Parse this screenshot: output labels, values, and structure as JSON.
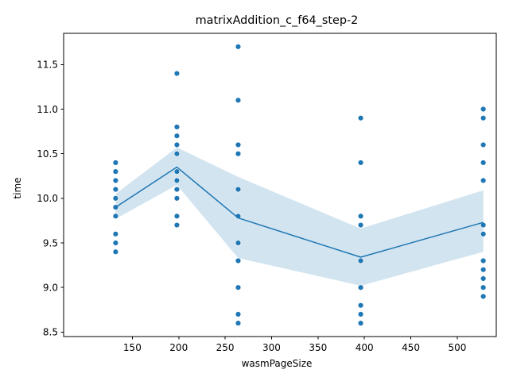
{
  "chart_data": {
    "type": "scatter",
    "title": "matrixAddition_c_f64_step-2",
    "xlabel": "wasmPageSize",
    "ylabel": "time",
    "xlim": [
      76,
      542
    ],
    "ylim": [
      8.45,
      11.85
    ],
    "xticks": [
      150,
      200,
      250,
      300,
      350,
      400,
      450,
      500
    ],
    "xtick_labels": [
      "150",
      "200",
      "250",
      "300",
      "350",
      "400",
      "450",
      "500"
    ],
    "yticks": [
      8.5,
      9.0,
      9.5,
      10.0,
      10.5,
      11.0,
      11.5
    ],
    "ytick_labels": [
      "8.5",
      "9.0",
      "9.5",
      "10.0",
      "10.5",
      "11.0",
      "11.5"
    ],
    "grid": false,
    "colors": {
      "points": "#1f77b4",
      "line": "#1f77b4",
      "band": "#1f77b4"
    },
    "points": [
      {
        "x": 132,
        "y": 10.4
      },
      {
        "x": 132,
        "y": 10.3
      },
      {
        "x": 132,
        "y": 10.2
      },
      {
        "x": 132,
        "y": 10.1
      },
      {
        "x": 132,
        "y": 10.0
      },
      {
        "x": 132,
        "y": 9.9
      },
      {
        "x": 132,
        "y": 9.8
      },
      {
        "x": 132,
        "y": 9.6
      },
      {
        "x": 132,
        "y": 9.5
      },
      {
        "x": 132,
        "y": 9.4
      },
      {
        "x": 198,
        "y": 11.4
      },
      {
        "x": 198,
        "y": 10.8
      },
      {
        "x": 198,
        "y": 10.7
      },
      {
        "x": 198,
        "y": 10.6
      },
      {
        "x": 198,
        "y": 10.5
      },
      {
        "x": 198,
        "y": 10.3
      },
      {
        "x": 198,
        "y": 10.2
      },
      {
        "x": 198,
        "y": 10.1
      },
      {
        "x": 198,
        "y": 10.0
      },
      {
        "x": 198,
        "y": 9.8
      },
      {
        "x": 198,
        "y": 9.7
      },
      {
        "x": 264,
        "y": 11.7
      },
      {
        "x": 264,
        "y": 11.1
      },
      {
        "x": 264,
        "y": 10.6
      },
      {
        "x": 264,
        "y": 10.5
      },
      {
        "x": 264,
        "y": 10.1
      },
      {
        "x": 264,
        "y": 9.8
      },
      {
        "x": 264,
        "y": 9.5
      },
      {
        "x": 264,
        "y": 9.3
      },
      {
        "x": 264,
        "y": 9.0
      },
      {
        "x": 264,
        "y": 8.7
      },
      {
        "x": 264,
        "y": 8.6
      },
      {
        "x": 396,
        "y": 10.9
      },
      {
        "x": 396,
        "y": 10.4
      },
      {
        "x": 396,
        "y": 9.8
      },
      {
        "x": 396,
        "y": 9.7
      },
      {
        "x": 396,
        "y": 9.3
      },
      {
        "x": 396,
        "y": 9.0
      },
      {
        "x": 396,
        "y": 8.8
      },
      {
        "x": 396,
        "y": 8.7
      },
      {
        "x": 396,
        "y": 8.6
      },
      {
        "x": 528,
        "y": 11.0
      },
      {
        "x": 528,
        "y": 10.9
      },
      {
        "x": 528,
        "y": 10.6
      },
      {
        "x": 528,
        "y": 10.4
      },
      {
        "x": 528,
        "y": 10.2
      },
      {
        "x": 528,
        "y": 9.7
      },
      {
        "x": 528,
        "y": 9.6
      },
      {
        "x": 528,
        "y": 9.3
      },
      {
        "x": 528,
        "y": 9.2
      },
      {
        "x": 528,
        "y": 9.1
      },
      {
        "x": 528,
        "y": 9.0
      },
      {
        "x": 528,
        "y": 8.9
      }
    ],
    "mean_line": {
      "x": [
        132,
        198,
        264,
        396,
        528
      ],
      "y": [
        9.9,
        10.35,
        9.78,
        9.34,
        9.73
      ]
    },
    "confidence_band": {
      "x": [
        132,
        198,
        264,
        396,
        528
      ],
      "lower": [
        9.77,
        10.15,
        9.33,
        9.02,
        9.4
      ],
      "upper": [
        10.05,
        10.57,
        10.24,
        9.66,
        10.09
      ]
    }
  }
}
